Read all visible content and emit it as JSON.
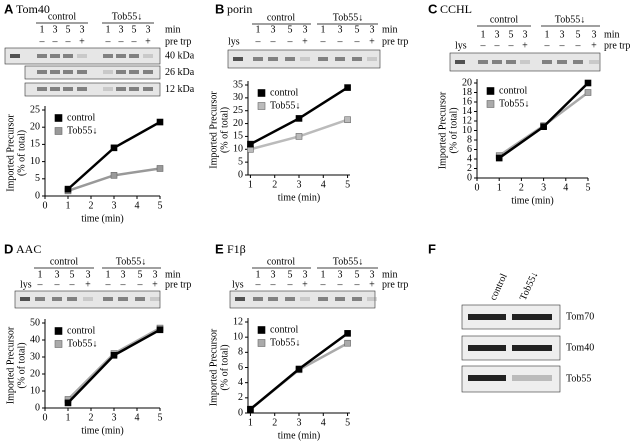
{
  "panels": [
    {
      "letter": "A",
      "title": "Tom40",
      "groups": [
        "control",
        "Tob55↓"
      ],
      "lanes": [
        "1",
        "3",
        "5",
        "3"
      ],
      "treatment": [
        "–",
        "–",
        "–",
        "+"
      ],
      "row_labels": [
        "min",
        "pre trp"
      ],
      "markers": [
        "40 kDa",
        "26 kDa",
        "12 kDa"
      ]
    },
    {
      "letter": "B",
      "title": "porin",
      "groups": [
        "control",
        "Tob55↓"
      ],
      "lanes": [
        "1",
        "3",
        "5",
        "3"
      ],
      "treatment": [
        "–",
        "–",
        "–",
        "+"
      ],
      "row_labels": [
        "min",
        "pre trp"
      ],
      "lys": "lys"
    },
    {
      "letter": "C",
      "title": "CCHL",
      "groups": [
        "control",
        "Tob55↓"
      ],
      "lanes": [
        "1",
        "3",
        "5",
        "3"
      ],
      "treatment": [
        "–",
        "–",
        "–",
        "+"
      ],
      "row_labels": [
        "min",
        "pre trp"
      ],
      "lys": "lys"
    },
    {
      "letter": "D",
      "title": "AAC",
      "groups": [
        "control",
        "Tob55↓"
      ],
      "lanes": [
        "1",
        "3",
        "5",
        "3"
      ],
      "treatment": [
        "–",
        "–",
        "–",
        "+"
      ],
      "row_labels": [
        "min",
        "pre trp"
      ],
      "lys": "lys"
    },
    {
      "letter": "E",
      "title": "F1β",
      "groups": [
        "control",
        "Tob55↓"
      ],
      "lanes": [
        "1",
        "3",
        "5",
        "3"
      ],
      "treatment": [
        "–",
        "–",
        "–",
        "+"
      ],
      "row_labels": [
        "min",
        "pre trp"
      ],
      "lys": "lys"
    },
    {
      "letter": "F",
      "samples": [
        "control",
        "Tob55↓"
      ],
      "markers": [
        "Tom70",
        "Tom40",
        "Tob55"
      ]
    }
  ],
  "chart_data": [
    {
      "type": "line",
      "xlabel": "time (min)",
      "ylabel": [
        "Imported Precursor",
        "(% of total)"
      ],
      "x": [
        1,
        3,
        5
      ],
      "series": [
        {
          "name": "control",
          "color": "#000000",
          "values": [
            2,
            14,
            21.5
          ]
        },
        {
          "name": "Tob55↓",
          "color": "#999999",
          "values": [
            1.5,
            6,
            8
          ]
        }
      ],
      "xlim": [
        0,
        5
      ],
      "xticks": [
        0,
        1,
        2,
        3,
        4,
        5
      ],
      "ylim": [
        0,
        25
      ],
      "yticks": [
        0,
        5,
        10,
        15,
        20,
        25
      ],
      "legend": "upper left"
    },
    {
      "type": "line",
      "xlabel": "time (min)",
      "ylabel": [
        "Imported Precursor",
        "(% of total)"
      ],
      "x": [
        1,
        3,
        5
      ],
      "series": [
        {
          "name": "control",
          "color": "#000000",
          "values": [
            12,
            22,
            34
          ]
        },
        {
          "name": "Tob55↓",
          "color": "#bbbbbb",
          "values": [
            10,
            15,
            21.5
          ]
        }
      ],
      "xlim": [
        0.9,
        5.1
      ],
      "xticks": [
        1,
        2,
        3,
        4,
        5
      ],
      "ylim": [
        0,
        35
      ],
      "yticks": [
        0,
        5,
        10,
        15,
        20,
        25,
        30,
        35
      ],
      "legend": "upper left"
    },
    {
      "type": "line",
      "xlabel": "time (min)",
      "ylabel": [
        "Imported Precursor",
        "(% of total)"
      ],
      "x": [
        1,
        3,
        5
      ],
      "series": [
        {
          "name": "control",
          "color": "#000000",
          "values": [
            4.2,
            10.8,
            20
          ]
        },
        {
          "name": "Tob55↓",
          "color": "#aaaaaa",
          "values": [
            4.7,
            11,
            18
          ]
        }
      ],
      "xlim": [
        0,
        5
      ],
      "xticks": [
        0,
        1,
        2,
        3,
        4,
        5
      ],
      "ylim": [
        0,
        20
      ],
      "yticks": [
        0,
        2,
        4,
        6,
        8,
        10,
        12,
        14,
        16,
        18,
        20
      ],
      "legend": "upper left"
    },
    {
      "type": "line",
      "xlabel": "time (min)",
      "ylabel": [
        "Imported Precursor",
        "(% of total)"
      ],
      "x": [
        1,
        3,
        5
      ],
      "series": [
        {
          "name": "control",
          "color": "#000000",
          "values": [
            3,
            31,
            46
          ]
        },
        {
          "name": "Tob55↓",
          "color": "#aaaaaa",
          "values": [
            5,
            32,
            47
          ]
        }
      ],
      "xlim": [
        0,
        5
      ],
      "xticks": [
        0,
        1,
        2,
        3,
        4,
        5
      ],
      "ylim": [
        0,
        50
      ],
      "yticks": [
        0,
        10,
        20,
        30,
        40,
        50
      ],
      "legend": "upper left"
    },
    {
      "type": "line",
      "xlabel": "time (min)",
      "ylabel": [
        "Imported Precursor",
        "(% of total)"
      ],
      "x": [
        1,
        3,
        5
      ],
      "series": [
        {
          "name": "control",
          "color": "#000000",
          "values": [
            0.5,
            5.8,
            10.5
          ]
        },
        {
          "name": "Tob55↓",
          "color": "#aaaaaa",
          "values": [
            0.5,
            5.7,
            9.2
          ]
        }
      ],
      "xlim": [
        0.9,
        5.1
      ],
      "xticks": [
        1,
        2,
        3,
        4,
        5
      ],
      "ylim": [
        0,
        12
      ],
      "yticks": [
        0,
        2,
        4,
        6,
        8,
        10,
        12
      ],
      "legend": "upper left"
    }
  ]
}
